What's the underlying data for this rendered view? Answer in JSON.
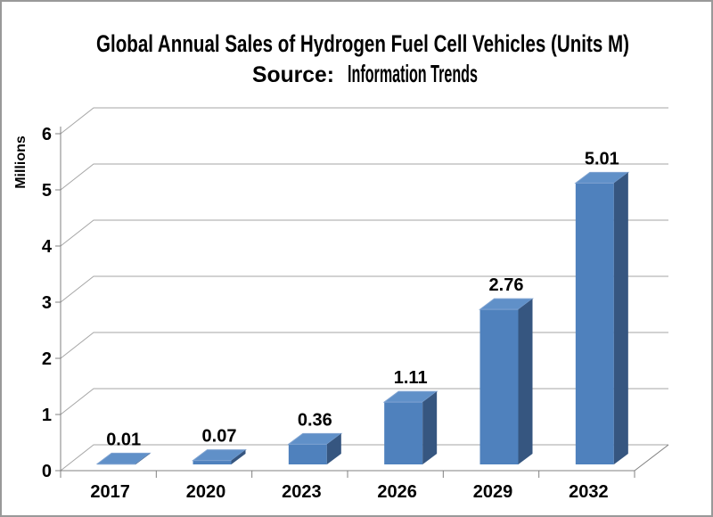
{
  "frame": {
    "background": "#ffffff",
    "border_color": "#999999"
  },
  "title": {
    "line1": "Global Annual Sales of Hydrogen Fuel Cell Vehicles (Units M)",
    "source_prefix": "Source:",
    "source_name": "Information Trends"
  },
  "chart_data": {
    "type": "bar",
    "style": "3d-column",
    "title": "Global Annual Sales of Hydrogen Fuel Cell Vehicles (Units M)",
    "subtitle": "Source: Information Trends",
    "categories": [
      "2017",
      "2020",
      "2023",
      "2026",
      "2029",
      "2032"
    ],
    "values": [
      0.01,
      0.07,
      0.36,
      1.11,
      2.76,
      5.01
    ],
    "data_labels": [
      "0.01",
      "0.07",
      "0.36",
      "1.11",
      "2.76",
      "5.01"
    ],
    "xlabel": "",
    "ylabel": "Millions",
    "ylim": [
      0,
      6
    ],
    "yticks": [
      "0",
      "1",
      "2",
      "3",
      "4",
      "5",
      "6"
    ],
    "grid": true,
    "legend": false,
    "colors": {
      "bar_front": "#4f81bd",
      "bar_top": "#6090c8",
      "bar_top_edge": "#7fa3d1",
      "bar_side": "#365680",
      "gridline": "#a6a6a6",
      "axis": "#808080",
      "text": "#000000"
    }
  }
}
